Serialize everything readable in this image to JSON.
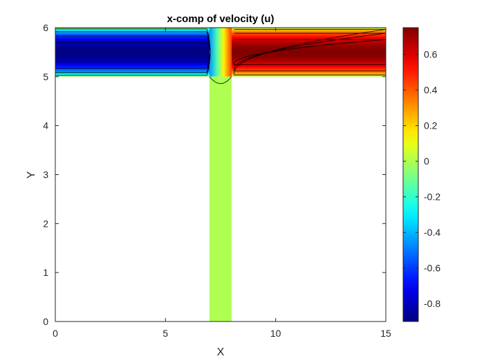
{
  "chart_data": {
    "type": "heatmap",
    "title": "x-comp of velocity (u)",
    "xlabel": "X",
    "ylabel": "Y",
    "xlim": [
      0,
      15
    ],
    "ylim": [
      0,
      6
    ],
    "xticks": [
      0,
      5,
      10,
      15
    ],
    "yticks": [
      0,
      1,
      2,
      3,
      4,
      5,
      6
    ],
    "colorbar": {
      "colormap": "jet",
      "range": [
        -0.9,
        0.75
      ],
      "ticks": [
        -0.8,
        -0.6,
        -0.4,
        -0.2,
        0,
        0.2,
        0.4,
        0.6
      ]
    },
    "domain": {
      "channel": {
        "x": [
          0,
          15
        ],
        "y": [
          5,
          6
        ]
      },
      "stem": {
        "x": [
          7,
          8
        ],
        "y": [
          0,
          5
        ]
      }
    },
    "field_summary": {
      "left_channel_min": -0.9,
      "right_channel_max": 0.75,
      "stem_value": 0
    },
    "contour_levels": [
      -0.8,
      -0.6,
      -0.4,
      -0.2,
      0,
      0.2,
      0.4,
      0.6
    ],
    "grid": false,
    "box": true
  }
}
